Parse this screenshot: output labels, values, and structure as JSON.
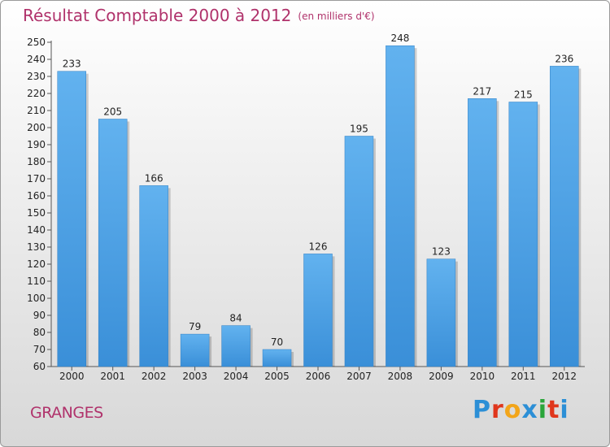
{
  "header": {
    "title": "Résultat Comptable 2000 à 2012",
    "subtitle": "(en milliers d'€)"
  },
  "footer": {
    "commune": "GRANGES",
    "logo": "Proxiti",
    "logo_letter_colors": [
      "#2c8fd6",
      "#e0361c",
      "#f2a51a",
      "#2c8fd6",
      "#2aa53a",
      "#e0361c",
      "#2c8fd6"
    ]
  },
  "colors": {
    "bar": "#3a8fd8",
    "bar_light": "#62b2ef",
    "title": "#b0326b"
  },
  "chart_data": {
    "type": "bar",
    "title": "Résultat Comptable 2000 à 2012",
    "subtitle": "(en milliers d'€)",
    "categories": [
      "2000",
      "2001",
      "2002",
      "2003",
      "2004",
      "2005",
      "2006",
      "2007",
      "2008",
      "2009",
      "2010",
      "2011",
      "2012"
    ],
    "values": [
      233,
      205,
      166,
      79,
      84,
      70,
      126,
      195,
      248,
      123,
      217,
      215,
      236
    ],
    "ylim": [
      60,
      250
    ],
    "yticks": [
      60,
      70,
      80,
      90,
      100,
      110,
      120,
      130,
      140,
      150,
      160,
      170,
      180,
      190,
      200,
      210,
      220,
      230,
      240,
      250
    ],
    "grid": false,
    "data_labels": true
  }
}
